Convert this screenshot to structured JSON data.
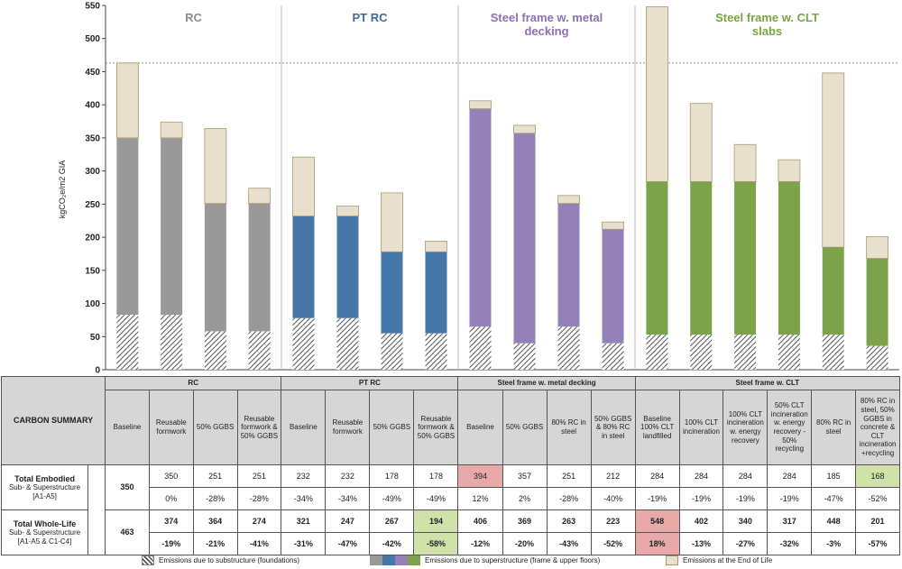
{
  "chart_data": {
    "type": "bar",
    "stacked": true,
    "ylabel": "kgCO₂e/m2 GIA",
    "ylim": [
      0,
      550
    ],
    "yticks": [
      0,
      50,
      100,
      150,
      200,
      250,
      300,
      350,
      400,
      450,
      500,
      550
    ],
    "reference_line": 463,
    "groups": [
      {
        "name": "RC",
        "color": "#999999",
        "label_color": "#8c8c8c",
        "substructure": [
          83,
          83,
          58,
          58
        ],
        "superstructure": [
          267,
          267,
          193,
          193
        ],
        "end_of_life": [
          113,
          24,
          113,
          23
        ]
      },
      {
        "name": "PT RC",
        "color": "#4577a8",
        "label_color": "#3d6c9c",
        "substructure": [
          78,
          78,
          55,
          55
        ],
        "superstructure": [
          154,
          154,
          123,
          123
        ],
        "end_of_life": [
          89,
          15,
          89,
          16
        ]
      },
      {
        "name": "Steel frame w. metal decking",
        "color": "#9381b7",
        "label_color": "#8a70b4",
        "substructure": [
          65,
          40,
          65,
          40
        ],
        "superstructure": [
          329,
          317,
          186,
          172
        ],
        "end_of_life": [
          12,
          12,
          12,
          11
        ]
      },
      {
        "name": "Steel frame w. CLT slabs",
        "color": "#7da34a",
        "label_color": "#78a641",
        "substructure": [
          53,
          53,
          53,
          53,
          53,
          36
        ],
        "superstructure": [
          231,
          231,
          231,
          231,
          132,
          132
        ],
        "end_of_life": [
          264,
          118,
          56,
          33,
          263,
          33
        ]
      }
    ],
    "legend": [
      {
        "key": "substructure",
        "label": "Emissions due to substructure (foundations)"
      },
      {
        "key": "superstructure",
        "label": "Emissions due to superstructure (frame & upper floors)"
      },
      {
        "key": "end_of_life",
        "label": "Emissions at the End of Life"
      }
    ],
    "eol_color": "#e8e0cc"
  },
  "table": {
    "carbon_summary_label": "CARBON SUMMARY",
    "unit_label": "kgCO₂e/m2",
    "groups": [
      {
        "name": "RC",
        "columns": [
          "Baseline",
          "Reusable formwork",
          "50% GGBS",
          "Reusable formwork & 50% GGBS"
        ]
      },
      {
        "name": "PT RC",
        "columns": [
          "Baseline",
          "Reusable formwork",
          "50% GGBS",
          "Reusable formwork & 50% GGBS"
        ]
      },
      {
        "name": "Steel frame w. metal decking",
        "columns": [
          "Baseline",
          "50% GGBS",
          "80% RC in steel",
          "50% GGBS & 80% RC in steel"
        ]
      },
      {
        "name": "Steel frame w. CLT",
        "columns": [
          "Baseline 100% CLT landfilled",
          "100% CLT incineration",
          "100% CLT incineration w. energy recovery",
          "50% CLT incineration w. energy recovery - 50% recycling",
          "80% RC in steel",
          "80% RC in steel, 50% GGBS in concrete & CLT incineration +recycling"
        ]
      }
    ],
    "embodied": {
      "title": "Total Embodied",
      "sub1": "Sub- & Superstructure",
      "sub2": "[A1-A5]",
      "values": [
        "350",
        "350",
        "251",
        "251",
        "232",
        "232",
        "178",
        "178",
        "394",
        "357",
        "251",
        "212",
        "284",
        "284",
        "284",
        "284",
        "185",
        "168"
      ],
      "pct": [
        "",
        "0%",
        "-28%",
        "-28%",
        "-34%",
        "-34%",
        "-49%",
        "-49%",
        "12%",
        "2%",
        "-28%",
        "-40%",
        "-19%",
        "-19%",
        "-19%",
        "-19%",
        "-47%",
        "-52%"
      ]
    },
    "wholelife": {
      "title": "Total Whole-Life",
      "sub1": "Sub- & Superstructure",
      "sub2": "[A1-A5 & C1-C4]",
      "values": [
        "463",
        "374",
        "364",
        "274",
        "321",
        "247",
        "267",
        "194",
        "406",
        "369",
        "263",
        "223",
        "548",
        "402",
        "340",
        "317",
        "448",
        "201"
      ],
      "pct": [
        "",
        "-19%",
        "-21%",
        "-41%",
        "-31%",
        "-47%",
        "-42%",
        "-58%",
        "-12%",
        "-20%",
        "-43%",
        "-52%",
        "18%",
        "-13%",
        "-27%",
        "-32%",
        "-3%",
        "-57%"
      ]
    },
    "highlights": {
      "embodied_red": [
        8
      ],
      "embodied_green": [
        17
      ],
      "wholelife_red": [
        12
      ],
      "wholelife_green": [
        7
      ]
    }
  }
}
